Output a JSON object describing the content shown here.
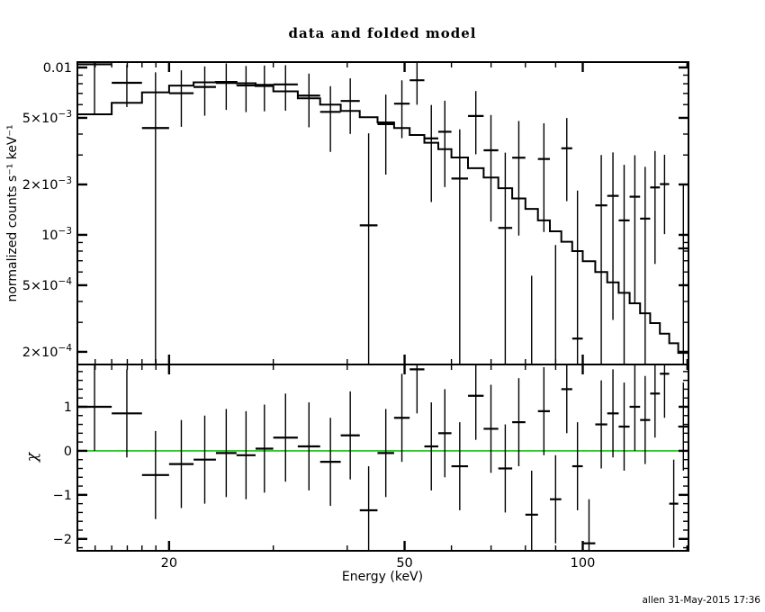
{
  "title": "data and folded model",
  "footer": "allen 31-May-2015 17:36",
  "chart_data": {
    "type": "line",
    "subtype": "xspec-spectrum-with-residuals",
    "title": "data and folded model",
    "xlabel": "Energy (keV)",
    "ylabel_top": "normalized counts s⁻¹ keV⁻¹",
    "ylabel_bottom": "χ",
    "x_axis": {
      "scale": "log",
      "min": 14.0,
      "max": 150.9,
      "major_ticks": [
        20,
        50,
        100
      ],
      "tick_labels": [
        "20",
        "50",
        "100"
      ],
      "minor_ticks": [
        15,
        16,
        17,
        18,
        19,
        30,
        40,
        60,
        70,
        80,
        90,
        150
      ]
    },
    "y_axis_top": {
      "scale": "log",
      "min": 0.000168,
      "max": 0.01077,
      "labeled_ticks": [
        {
          "value": 0.01,
          "base": "0.01",
          "sup": ""
        },
        {
          "value": 0.005,
          "base": "5×10",
          "sup": "−3"
        },
        {
          "value": 0.002,
          "base": "2×10",
          "sup": "−3"
        },
        {
          "value": 0.001,
          "base": "10",
          "sup": "−3"
        },
        {
          "value": 0.0005,
          "base": "5×10",
          "sup": "−4"
        },
        {
          "value": 0.0002,
          "base": "2×10",
          "sup": "−4"
        }
      ],
      "minor_tick_values": [
        0.0003,
        0.0004,
        0.0006,
        0.0007,
        0.0008,
        0.0009,
        0.003,
        0.004,
        0.006,
        0.007,
        0.008,
        0.009
      ]
    },
    "y_axis_bottom": {
      "scale": "linear",
      "min": -2.27,
      "max": 1.96,
      "labeled_ticks": [
        1,
        0,
        -1,
        -2
      ],
      "tick_labels": [
        "1",
        "0",
        "−1",
        "−2"
      ],
      "minor_step": 0.2
    },
    "zero_line": {
      "value": 0,
      "color": "#00cc00"
    },
    "bin_edges": [
      14,
      16,
      18,
      20,
      22,
      24,
      26,
      28,
      30,
      33,
      36,
      39,
      42,
      45,
      48,
      51,
      54,
      57,
      60,
      64,
      68,
      72,
      76,
      80,
      84,
      88,
      92,
      96,
      100,
      105,
      110,
      115,
      120,
      125,
      130,
      135,
      140,
      145,
      150.9
    ],
    "model": [
      0.00525,
      0.00615,
      0.0071,
      0.0078,
      0.00815,
      0.0082,
      0.00805,
      0.00775,
      0.0072,
      0.00655,
      0.006,
      0.0055,
      0.00505,
      0.0047,
      0.00435,
      0.00395,
      0.00355,
      0.00325,
      0.0029,
      0.0025,
      0.0022,
      0.0019,
      0.00165,
      0.00143,
      0.00122,
      0.00105,
      0.00091,
      0.0008,
      0.000695,
      0.0006,
      0.00052,
      0.00045,
      0.00039,
      0.00034,
      0.000297,
      0.000257,
      0.000225,
      0.000197
    ],
    "counts": [
      0.01045,
      0.0081,
      0.00435,
      0.00702,
      0.00765,
      0.00808,
      0.00781,
      0.00787,
      0.00792,
      0.00679,
      0.00543,
      0.00631,
      0.00114,
      0.00459,
      0.00608,
      0.00839,
      0.00377,
      0.00413,
      0.00217,
      0.00513,
      0.0032,
      0.0011,
      0.00289,
      -0.00133,
      0.00284,
      -0.00093,
      0.00329,
      0.00024,
      -0.00246,
      0.0015,
      0.00171,
      0.00122,
      0.00169,
      0.00125,
      0.00192,
      0.00201,
      -0.00122,
      0.00083
    ],
    "sigma": [
      0.0052,
      0.0023,
      0.005,
      0.0026,
      0.0025,
      0.0025,
      0.0024,
      0.0024,
      0.0024,
      0.0024,
      0.0023,
      0.0023,
      0.0029,
      0.0023,
      0.0023,
      0.0024,
      0.0022,
      0.0022,
      0.0021,
      0.0021,
      0.002,
      0.002,
      0.0019,
      0.0019,
      0.0018,
      0.0018,
      0.0017,
      0.0016,
      0.0015,
      0.0015,
      0.0014,
      0.0014,
      0.0013,
      0.0013,
      0.00125,
      0.001,
      0.0012,
      0.00115
    ],
    "chi": [
      1.0,
      0.85,
      -0.55,
      -0.3,
      -0.2,
      -0.05,
      -0.1,
      0.05,
      0.3,
      0.1,
      -0.25,
      0.35,
      -1.35,
      -0.05,
      0.75,
      1.85,
      0.1,
      0.4,
      -0.35,
      1.25,
      0.5,
      -0.4,
      0.65,
      -1.45,
      0.9,
      -1.1,
      1.4,
      -0.35,
      -2.1,
      0.6,
      0.85,
      0.55,
      1.0,
      0.7,
      1.3,
      1.75,
      -1.2,
      0.55
    ],
    "chi_error": 1.0
  }
}
